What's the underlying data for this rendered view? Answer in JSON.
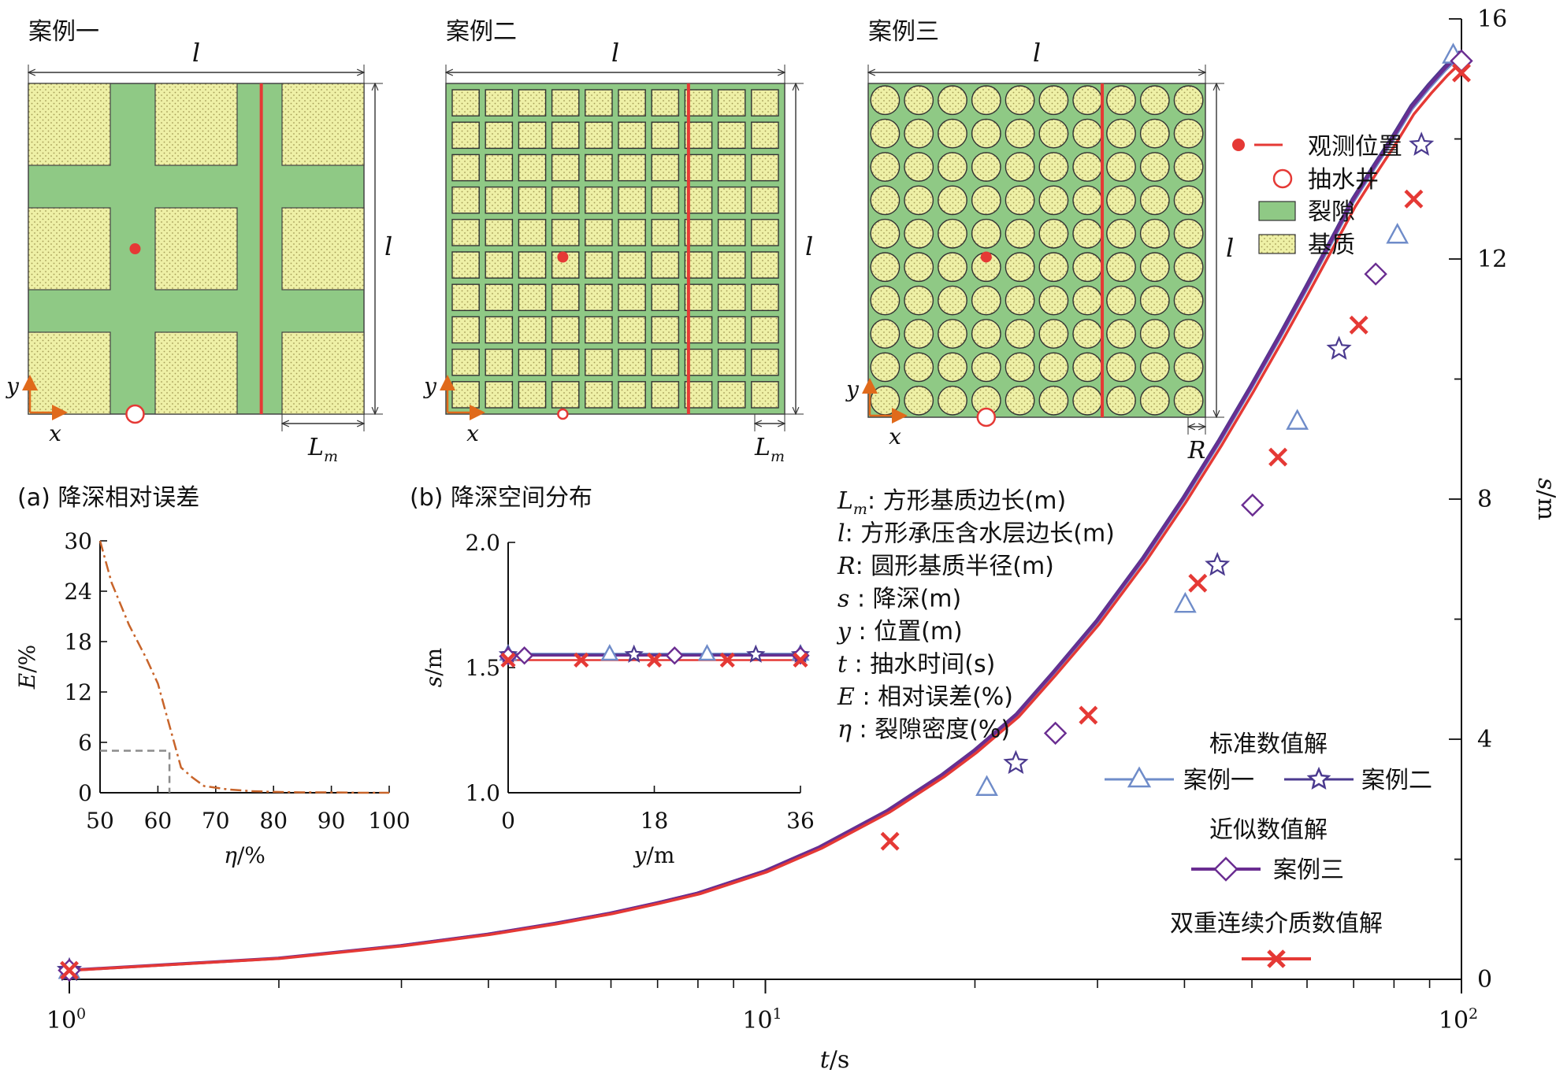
{
  "colors": {
    "fracture": "#8fc985",
    "matrix": "#eef0a6",
    "observe": "#e53935",
    "case1": "#6f8cc9",
    "case2": "#4b3a8f",
    "case3": "#6a2d91",
    "dual": "#e53935",
    "err_line": "#c8642a",
    "err_ref": "#8c8c8c"
  },
  "schematics": [
    {
      "label": "案例一",
      "dim_top": "l",
      "dim_right": "l",
      "dim_bottom": "L",
      "dim_bottom_sub": "m",
      "axis_x": "x",
      "axis_y": "y"
    },
    {
      "label": "案例二",
      "dim_top": "l",
      "dim_right": "l",
      "dim_bottom": "L",
      "dim_bottom_sub": "m",
      "axis_x": "x",
      "axis_y": "y"
    },
    {
      "label": "案例三",
      "dim_top": "l",
      "dim_right": "l",
      "dim_bottom": "R",
      "dim_bottom_sub": "",
      "axis_x": "x",
      "axis_y": "y"
    }
  ],
  "legend_top": {
    "observe": "观测位置",
    "well": "抽水井",
    "fracture": "裂隙",
    "matrix": "基质"
  },
  "notation": [
    {
      "sym": "L",
      "sub": "m",
      "desc": ": 方形基质边长(m)"
    },
    {
      "sym": "l",
      "sub": "",
      "desc": ": 方形承压含水层边长(m)"
    },
    {
      "sym": "R",
      "sub": "",
      "desc": ": 圆形基质半径(m)"
    },
    {
      "sym": "s",
      "sub": "",
      "desc": " : 降深(m)"
    },
    {
      "sym": "y",
      "sub": "",
      "desc": " : 位置(m)"
    },
    {
      "sym": "t",
      "sub": "",
      "desc": " : 抽水时间(s)"
    },
    {
      "sym": "E",
      "sub": "",
      "desc": " : 相对误差(%)"
    },
    {
      "sym": "η",
      "sub": "",
      "desc": " : 裂隙密度(%)"
    }
  ],
  "legend_bottom": {
    "title_standard": "标准数值解",
    "case1": "案例一",
    "case2": "案例二",
    "title_approx": "近似数值解",
    "case3": "案例三",
    "title_dual": "双重连续介质数值解"
  },
  "chart_data": [
    {
      "id": "main",
      "type": "line",
      "x_scale": "log",
      "xlim": [
        1,
        100
      ],
      "ylim": [
        0,
        16
      ],
      "x_ticks": [
        1,
        10,
        100
      ],
      "x_tick_labels": [
        {
          "base": "10",
          "exp": "0"
        },
        {
          "base": "10",
          "exp": "1"
        },
        {
          "base": "10",
          "exp": "2"
        }
      ],
      "y_ticks": [
        0,
        4,
        8,
        12,
        16
      ],
      "xlabel": {
        "var": "t",
        "unit": "/s"
      },
      "ylabel": {
        "var": "s",
        "unit": "/m"
      },
      "curve": {
        "x": [
          1,
          2,
          3,
          4,
          5,
          6,
          7,
          8,
          10,
          12,
          15,
          18,
          20,
          23,
          26,
          30,
          35,
          40,
          45,
          50,
          55,
          60,
          65,
          70,
          75,
          80,
          85,
          90,
          95,
          100
        ],
        "y": [
          0.15,
          0.35,
          0.56,
          0.75,
          0.93,
          1.1,
          1.27,
          1.43,
          1.8,
          2.2,
          2.8,
          3.4,
          3.8,
          4.4,
          5.1,
          5.95,
          7.0,
          8.0,
          8.95,
          9.85,
          10.7,
          11.5,
          12.25,
          12.95,
          13.5,
          14.0,
          14.5,
          14.85,
          15.15,
          15.4
        ]
      },
      "series": [
        {
          "name": "案例一",
          "marker": "triangle",
          "x": [
            1,
            20.8,
            40.1,
            58.1,
            80.9,
            97.3
          ],
          "y": [
            0.15,
            3.2,
            6.25,
            9.3,
            12.4,
            15.4
          ]
        },
        {
          "name": "案例二",
          "marker": "star",
          "x": [
            1,
            22.9,
            44.6,
            66.7,
            87.6
          ],
          "y": [
            0.15,
            3.6,
            6.9,
            10.5,
            13.9
          ]
        },
        {
          "name": "案例三",
          "marker": "diamond",
          "x": [
            1,
            26.1,
            50.1,
            75.3,
            100
          ],
          "y": [
            0.15,
            4.1,
            7.9,
            11.75,
            15.3
          ]
        },
        {
          "name": "双重连续介质数值解",
          "marker": "x",
          "x": [
            1,
            15.1,
            29.1,
            41.8,
            54.5,
            71.2,
            85.4,
            100
          ],
          "y": [
            0.15,
            2.3,
            4.4,
            6.6,
            8.7,
            10.9,
            13.0,
            15.1
          ]
        }
      ]
    },
    {
      "id": "a",
      "type": "line",
      "title": "(a) 降深相对误差",
      "xlim": [
        50,
        100
      ],
      "ylim": [
        0,
        30
      ],
      "x_ticks": [
        50,
        60,
        70,
        80,
        90,
        100
      ],
      "y_ticks": [
        0,
        6,
        12,
        18,
        24,
        30
      ],
      "xlabel": {
        "var": "η",
        "unit": "/%"
      },
      "ylabel": {
        "var": "E",
        "unit": "/%"
      },
      "series": [
        {
          "name": "E",
          "x": [
            50,
            52,
            55,
            58,
            60,
            62,
            64,
            66,
            68,
            72,
            76,
            80,
            85,
            90,
            95,
            100
          ],
          "y": [
            30,
            25,
            20,
            16,
            13,
            8,
            3,
            1.8,
            0.8,
            0.4,
            0.2,
            0.1,
            0.05,
            0.05,
            0,
            0
          ]
        }
      ],
      "reference": {
        "x": 62,
        "y": 5
      }
    },
    {
      "id": "b",
      "type": "line",
      "title": "(b) 降深空间分布",
      "xlim": [
        0,
        36
      ],
      "ylim": [
        1.0,
        2.0
      ],
      "x_ticks": [
        0,
        18,
        36
      ],
      "y_ticks": [
        1.0,
        1.5,
        2.0
      ],
      "y_tick_labels": [
        "1.0",
        "1.5",
        "2.0"
      ],
      "xlabel": {
        "var": "y",
        "unit": "/m"
      },
      "ylabel": {
        "var": "s",
        "unit": "/m"
      },
      "series": [
        {
          "name": "案例一",
          "marker": "triangle",
          "x": [
            0,
            12.5,
            24.5,
            36
          ],
          "y": [
            1.555,
            1.555,
            1.555,
            1.555
          ]
        },
        {
          "name": "案例二",
          "marker": "star",
          "x": [
            0,
            15.5,
            30.5,
            36
          ],
          "y": [
            1.552,
            1.552,
            1.552,
            1.552
          ]
        },
        {
          "name": "案例三",
          "marker": "diamond",
          "x": [
            0,
            2,
            20.5,
            36
          ],
          "y": [
            1.545,
            1.548,
            1.548,
            1.548
          ]
        },
        {
          "name": "双重连续介质数值解",
          "marker": "x",
          "x": [
            0,
            9,
            18,
            27,
            36
          ],
          "y": [
            1.53,
            1.53,
            1.53,
            1.53,
            1.53
          ]
        }
      ]
    }
  ]
}
